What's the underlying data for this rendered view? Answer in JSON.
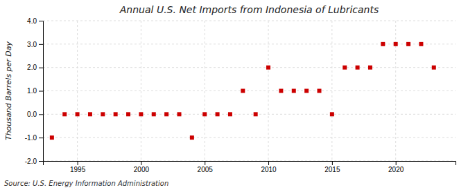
{
  "chart_data": {
    "type": "scatter",
    "title": "Annual U.S. Net Imports from Indonesia of Lubricants",
    "y_label": "Thousand Barrels per Day",
    "annotations": [
      "Source: U.S. Energy Information Administration"
    ],
    "x": [
      1993,
      1994,
      1995,
      1996,
      1997,
      1998,
      1999,
      2000,
      2001,
      2002,
      2003,
      2004,
      2005,
      2006,
      2007,
      2008,
      2009,
      2010,
      2011,
      2012,
      2013,
      2014,
      2015,
      2016,
      2017,
      2018,
      2019,
      2020,
      2021,
      2022,
      2023
    ],
    "values": [
      -1,
      0,
      0,
      0,
      0,
      0,
      0,
      0,
      0,
      0,
      0,
      -1,
      0,
      0,
      0,
      1,
      0,
      2,
      1,
      1,
      1,
      1,
      0,
      2,
      2,
      2,
      3,
      3,
      3,
      3,
      2
    ],
    "color": "#cc0000",
    "marker": "square",
    "xlim": [
      1992.3,
      2024.7
    ],
    "xticks": [
      1995,
      2000,
      2005,
      2010,
      2015,
      2020
    ],
    "ylim": [
      -2.0,
      4.0
    ],
    "yticks": [
      {
        "value": -2.0,
        "label": "-2.0"
      },
      {
        "value": -1.0,
        "label": "-1.0"
      },
      {
        "value": 0.0,
        "label": "0.0"
      },
      {
        "value": 1.0,
        "label": "1.0"
      },
      {
        "value": 2.0,
        "label": "2.0"
      },
      {
        "value": 3.0,
        "label": "3.0"
      },
      {
        "value": 4.0,
        "label": "4.0"
      }
    ],
    "grid": true
  }
}
